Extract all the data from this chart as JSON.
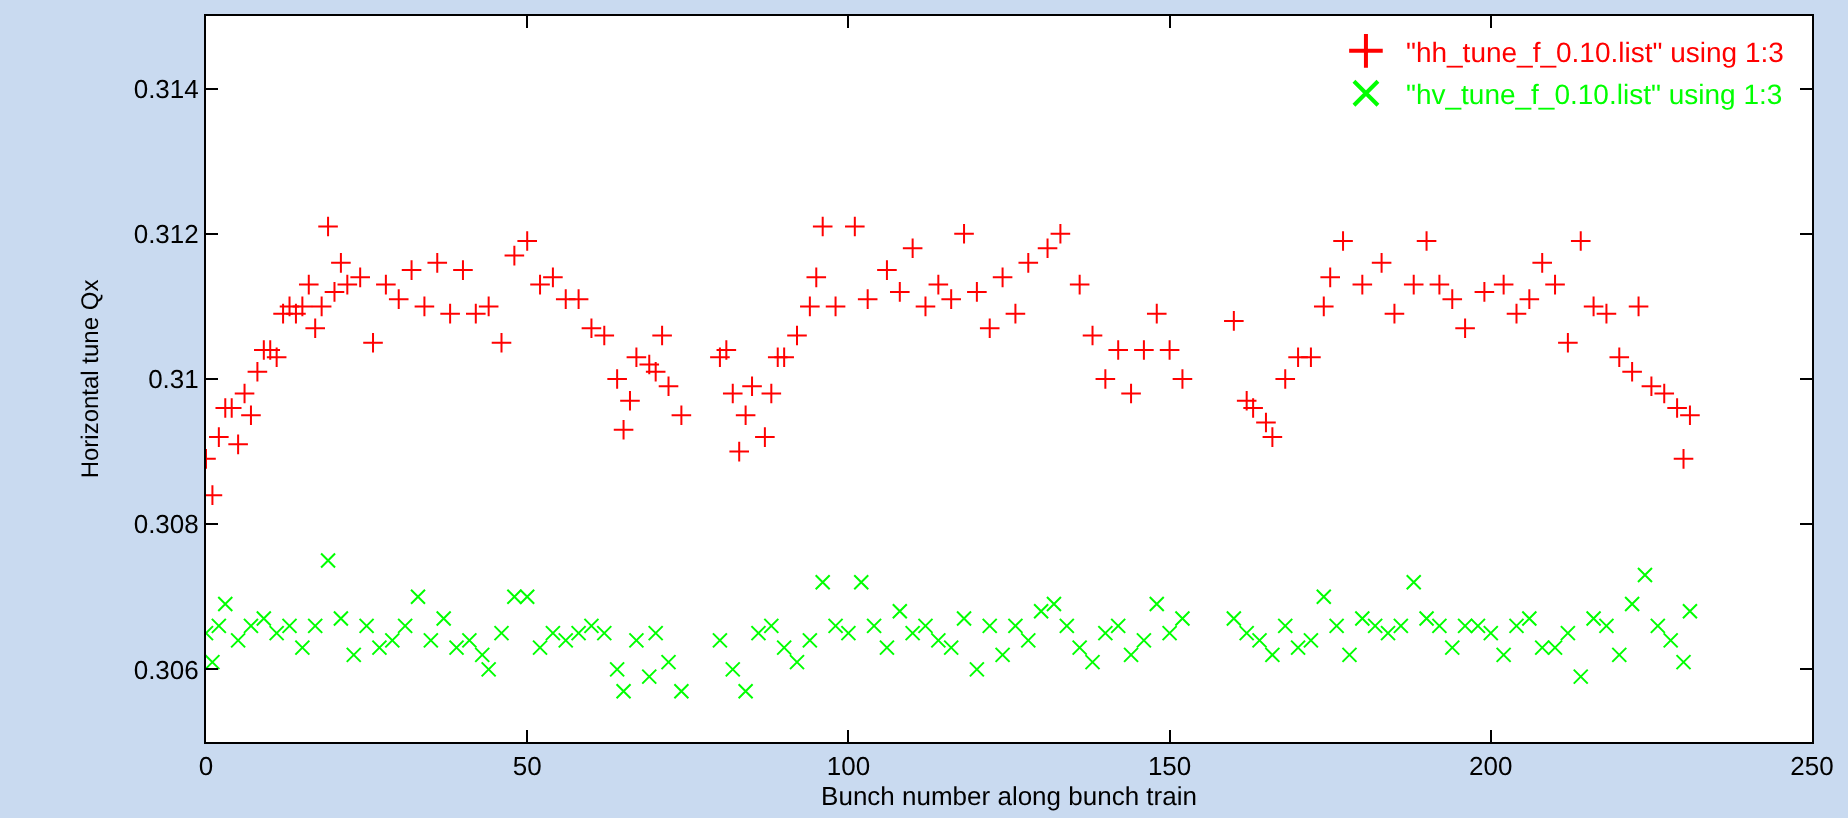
{
  "chart_data": {
    "type": "scatter",
    "xlabel": "Bunch number along bunch train",
    "ylabel": "Horizontal tune Qx",
    "xlim": [
      0,
      250
    ],
    "xticks": [
      0,
      50,
      100,
      150,
      200,
      250
    ],
    "ylim": [
      0.305,
      0.315
    ],
    "yticks": [
      0.306,
      0.308,
      0.31,
      0.312,
      0.314
    ],
    "legend": "top right",
    "series": [
      {
        "name": "\"hh_tune_f_0.10.list\" using 1:3",
        "color": "#ff0000",
        "marker": "cross",
        "x": [
          0,
          1,
          2,
          3,
          4,
          5,
          6,
          7,
          8,
          9,
          10,
          11,
          12,
          13,
          14,
          15,
          16,
          17,
          18,
          19,
          20,
          21,
          22,
          24,
          26,
          28,
          30,
          32,
          34,
          36,
          38,
          40,
          42,
          44,
          46,
          48,
          50,
          52,
          54,
          56,
          58,
          60,
          62,
          64,
          65,
          66,
          67,
          69,
          70,
          71,
          72,
          74,
          80,
          81,
          82,
          83,
          84,
          85,
          87,
          88,
          89,
          90,
          92,
          94,
          95,
          96,
          98,
          101,
          103,
          106,
          108,
          110,
          112,
          114,
          116,
          118,
          120,
          122,
          124,
          126,
          128,
          131,
          133,
          136,
          138,
          140,
          142,
          144,
          146,
          148,
          150,
          152,
          160,
          162,
          163,
          165,
          166,
          168,
          170,
          172,
          174,
          175,
          177,
          180,
          183,
          185,
          188,
          190,
          192,
          194,
          196,
          199,
          202,
          204,
          206,
          208,
          210,
          212,
          214,
          216,
          218,
          220,
          222,
          223,
          225,
          227,
          229,
          230,
          231
        ],
        "values": [
          0.3089,
          0.3084,
          0.3092,
          0.3096,
          0.3096,
          0.3091,
          0.3098,
          0.3095,
          0.3101,
          0.3104,
          0.3104,
          0.3103,
          0.3109,
          0.311,
          0.3109,
          0.311,
          0.3113,
          0.3107,
          0.311,
          0.3121,
          0.3112,
          0.3116,
          0.3113,
          0.3114,
          0.3105,
          0.3113,
          0.3111,
          0.3115,
          0.311,
          0.3116,
          0.3109,
          0.3115,
          0.3109,
          0.311,
          0.3105,
          0.3117,
          0.3119,
          0.3113,
          0.3114,
          0.3111,
          0.3111,
          0.3107,
          0.3106,
          0.31,
          0.3093,
          0.3097,
          0.3103,
          0.3102,
          0.3101,
          0.3106,
          0.3099,
          0.3095,
          0.3103,
          0.3104,
          0.3098,
          0.309,
          0.3095,
          0.3099,
          0.3092,
          0.3098,
          0.3103,
          0.3103,
          0.3106,
          0.311,
          0.3114,
          0.3121,
          0.311,
          0.3121,
          0.3111,
          0.3115,
          0.3112,
          0.3118,
          0.311,
          0.3113,
          0.3111,
          0.312,
          0.3112,
          0.3107,
          0.3114,
          0.3109,
          0.3116,
          0.3118,
          0.312,
          0.3113,
          0.3106,
          0.31,
          0.3104,
          0.3098,
          0.3104,
          0.3109,
          0.3104,
          0.31,
          0.3108,
          0.3097,
          0.3096,
          0.3094,
          0.3092,
          0.31,
          0.3103,
          0.3103,
          0.311,
          0.3114,
          0.3119,
          0.3113,
          0.3116,
          0.3109,
          0.3113,
          0.3119,
          0.3113,
          0.3111,
          0.3107,
          0.3112,
          0.3113,
          0.3109,
          0.3111,
          0.3116,
          0.3113,
          0.3105,
          0.3119,
          0.311,
          0.3109,
          0.3103,
          0.3101,
          0.311,
          0.3099,
          0.3098,
          0.3096,
          0.3089,
          0.3095
        ]
      },
      {
        "name": "\"hv_tune_f_0.10.list\" using 1:3",
        "color": "#00ff00",
        "marker": "x",
        "x": [
          0,
          1,
          2,
          3,
          5,
          7,
          9,
          11,
          13,
          15,
          17,
          19,
          21,
          23,
          25,
          27,
          29,
          31,
          33,
          35,
          37,
          39,
          41,
          43,
          44,
          46,
          48,
          50,
          52,
          54,
          56,
          58,
          60,
          62,
          64,
          65,
          67,
          69,
          70,
          72,
          74,
          80,
          82,
          84,
          86,
          88,
          90,
          92,
          94,
          96,
          98,
          100,
          102,
          104,
          106,
          108,
          110,
          112,
          114,
          116,
          118,
          120,
          122,
          124,
          126,
          128,
          130,
          132,
          134,
          136,
          138,
          140,
          142,
          144,
          146,
          148,
          150,
          152,
          160,
          162,
          164,
          166,
          168,
          170,
          172,
          174,
          176,
          178,
          180,
          182,
          184,
          186,
          188,
          190,
          192,
          194,
          196,
          198,
          200,
          202,
          204,
          206,
          208,
          210,
          212,
          214,
          216,
          218,
          220,
          222,
          224,
          226,
          228,
          230,
          231
        ],
        "values": [
          0.3065,
          0.3061,
          0.3066,
          0.3069,
          0.3064,
          0.3066,
          0.3067,
          0.3065,
          0.3066,
          0.3063,
          0.3066,
          0.3075,
          0.3067,
          0.3062,
          0.3066,
          0.3063,
          0.3064,
          0.3066,
          0.307,
          0.3064,
          0.3067,
          0.3063,
          0.3064,
          0.3062,
          0.306,
          0.3065,
          0.307,
          0.307,
          0.3063,
          0.3065,
          0.3064,
          0.3065,
          0.3066,
          0.3065,
          0.306,
          0.3057,
          0.3064,
          0.3059,
          0.3065,
          0.3061,
          0.3057,
          0.3064,
          0.306,
          0.3057,
          0.3065,
          0.3066,
          0.3063,
          0.3061,
          0.3064,
          0.3072,
          0.3066,
          0.3065,
          0.3072,
          0.3066,
          0.3063,
          0.3068,
          0.3065,
          0.3066,
          0.3064,
          0.3063,
          0.3067,
          0.306,
          0.3066,
          0.3062,
          0.3066,
          0.3064,
          0.3068,
          0.3069,
          0.3066,
          0.3063,
          0.3061,
          0.3065,
          0.3066,
          0.3062,
          0.3064,
          0.3069,
          0.3065,
          0.3067,
          0.3067,
          0.3065,
          0.3064,
          0.3062,
          0.3066,
          0.3063,
          0.3064,
          0.307,
          0.3066,
          0.3062,
          0.3067,
          0.3066,
          0.3065,
          0.3066,
          0.3072,
          0.3067,
          0.3066,
          0.3063,
          0.3066,
          0.3066,
          0.3065,
          0.3062,
          0.3066,
          0.3067,
          0.3063,
          0.3063,
          0.3065,
          0.3059,
          0.3067,
          0.3066,
          0.3062,
          0.3069,
          0.3073,
          0.3066,
          0.3064,
          0.3061,
          0.3068
        ]
      }
    ]
  }
}
